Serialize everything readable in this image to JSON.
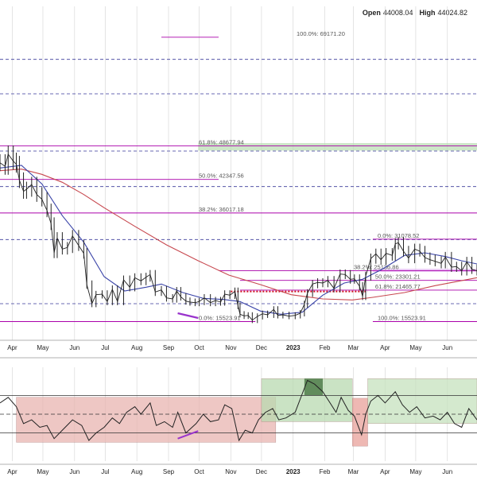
{
  "ohlc": {
    "open_label": "Open",
    "open_value": "44008.04",
    "high_label": "High",
    "high_value": "44024.82"
  },
  "chart_data": {
    "type": "line",
    "price_panel": {
      "ylim": [
        12000,
        75000
      ],
      "fib_levels": [
        {
          "label": "100.0%: 69171.20",
          "value": 69171.2,
          "color": "#aa00aa",
          "x_from": "2022-08-25",
          "x_to": "2022-10-20"
        },
        {
          "label": "61.8%: 48677.94",
          "value": 48677.94,
          "color": "#aa00aa",
          "x_from": "2022-03-20",
          "x_to": "2023-06-30"
        },
        {
          "label": "50.0%: 42347.56",
          "value": 42347.56,
          "color": "#aa00aa",
          "x_from": "2022-03-20",
          "x_to": "2022-10-20"
        },
        {
          "label": "38.2%: 36017.18",
          "value": 36017.18,
          "color": "#aa00aa",
          "x_from": "2022-03-20",
          "x_to": "2023-06-30"
        },
        {
          "label": "0.0%: 15523.91",
          "value": 15523.91,
          "color": "#aa00aa",
          "x_from": "2022-03-20",
          "x_to": "2022-11-25"
        },
        {
          "label": "0.0%: 31078.52",
          "value": 31078.52,
          "color": "#aa00aa",
          "x_from": "2023-03-20",
          "x_to": "2023-06-30"
        },
        {
          "label": "38.2%: 25136.86",
          "value": 25136.86,
          "color": "#aa00aa",
          "x_from": "2022-10-20",
          "x_to": "2023-06-30"
        },
        {
          "label": "50.0%: 23301.21",
          "value": 23301.21,
          "color": "#aa00aa",
          "x_from": "2022-11-10",
          "x_to": "2023-06-30"
        },
        {
          "label": "61.8%: 21465.77",
          "value": 21465.77,
          "color": "#aa00aa",
          "x_from": "2022-11-10",
          "x_to": "2023-06-30"
        },
        {
          "label": "100.0%: 15523.91",
          "value": 15523.91,
          "color": "#aa00aa",
          "x_from": "2023-03-20",
          "x_to": "2023-06-30"
        }
      ],
      "dashed_levels": [
        65000,
        58500,
        47700,
        41000,
        31000,
        18900
      ],
      "highlight_zone": {
        "x_from": "2022-09-30",
        "x_to": "2023-06-30",
        "y_from": 47800,
        "y_to": 49200,
        "color": "#b8dcb0"
      },
      "purple_band": {
        "x_from": "2023-03-20",
        "x_to": "2023-06-30",
        "y_from": 24900,
        "y_to": 25500
      },
      "red_dotted_resistance": {
        "x_from": "2022-11-01",
        "x_to": "2023-03-15",
        "value": 21200
      },
      "price_close": [
        [
          "2022-03-20",
          45500
        ],
        [
          "2022-03-25",
          44800
        ],
        [
          "2022-03-28",
          47100
        ],
        [
          "2022-04-02",
          45800
        ],
        [
          "2022-04-05",
          45200
        ],
        [
          "2022-04-08",
          42200
        ],
        [
          "2022-04-12",
          40100
        ],
        [
          "2022-04-15",
          40500
        ],
        [
          "2022-04-20",
          41400
        ],
        [
          "2022-04-25",
          39500
        ],
        [
          "2022-04-30",
          38600
        ],
        [
          "2022-05-05",
          36500
        ],
        [
          "2022-05-09",
          34000
        ],
        [
          "2022-05-12",
          28500
        ],
        [
          "2022-05-15",
          31300
        ],
        [
          "2022-05-20",
          29200
        ],
        [
          "2022-05-25",
          29500
        ],
        [
          "2022-05-30",
          31700
        ],
        [
          "2022-06-05",
          29900
        ],
        [
          "2022-06-10",
          28400
        ],
        [
          "2022-06-13",
          22500
        ],
        [
          "2022-06-18",
          18900
        ],
        [
          "2022-06-22",
          20600
        ],
        [
          "2022-06-28",
          20700
        ],
        [
          "2022-07-03",
          19300
        ],
        [
          "2022-07-08",
          21600
        ],
        [
          "2022-07-13",
          19300
        ],
        [
          "2022-07-19",
          23400
        ],
        [
          "2022-07-25",
          22000
        ],
        [
          "2022-07-30",
          23800
        ],
        [
          "2022-08-05",
          23200
        ],
        [
          "2022-08-10",
          23900
        ],
        [
          "2022-08-14",
          24400
        ],
        [
          "2022-08-19",
          21100
        ],
        [
          "2022-08-25",
          21500
        ],
        [
          "2022-08-30",
          20000
        ],
        [
          "2022-09-05",
          19800
        ],
        [
          "2022-09-09",
          21300
        ],
        [
          "2022-09-13",
          20200
        ],
        [
          "2022-09-18",
          19400
        ],
        [
          "2022-09-22",
          19200
        ],
        [
          "2022-09-27",
          19100
        ],
        [
          "2022-10-01",
          19300
        ],
        [
          "2022-10-06",
          20000
        ],
        [
          "2022-10-12",
          19100
        ],
        [
          "2022-10-17",
          19500
        ],
        [
          "2022-10-22",
          19200
        ],
        [
          "2022-10-26",
          20700
        ],
        [
          "2022-10-31",
          20500
        ],
        [
          "2022-11-05",
          21200
        ],
        [
          "2022-11-08",
          18500
        ],
        [
          "2022-11-10",
          16900
        ],
        [
          "2022-11-14",
          16600
        ],
        [
          "2022-11-18",
          16700
        ],
        [
          "2022-11-22",
          15800
        ],
        [
          "2022-11-27",
          16500
        ],
        [
          "2022-12-02",
          17000
        ],
        [
          "2022-12-07",
          16800
        ],
        [
          "2022-12-13",
          17800
        ],
        [
          "2022-12-17",
          16700
        ],
        [
          "2022-12-22",
          16800
        ],
        [
          "2022-12-28",
          16550
        ],
        [
          "2023-01-03",
          16700
        ],
        [
          "2023-01-08",
          17100
        ],
        [
          "2023-01-12",
          18800
        ],
        [
          "2023-01-15",
          20900
        ],
        [
          "2023-01-20",
          22600
        ],
        [
          "2023-01-25",
          22900
        ],
        [
          "2023-01-30",
          22800
        ],
        [
          "2023-02-04",
          23300
        ],
        [
          "2023-02-10",
          21800
        ],
        [
          "2023-02-16",
          24500
        ],
        [
          "2023-02-21",
          24400
        ],
        [
          "2023-02-26",
          23500
        ],
        [
          "2023-03-02",
          23600
        ],
        [
          "2023-03-07",
          22200
        ],
        [
          "2023-03-10",
          20300
        ],
        [
          "2023-03-13",
          24100
        ],
        [
          "2023-03-18",
          27400
        ],
        [
          "2023-03-23",
          28300
        ],
        [
          "2023-03-28",
          27200
        ],
        [
          "2023-04-02",
          28400
        ],
        [
          "2023-04-08",
          28000
        ],
        [
          "2023-04-11",
          30200
        ],
        [
          "2023-04-14",
          30400
        ],
        [
          "2023-04-19",
          28800
        ],
        [
          "2023-04-24",
          27500
        ],
        [
          "2023-04-30",
          29200
        ],
        [
          "2023-05-05",
          28800
        ],
        [
          "2023-05-10",
          27600
        ],
        [
          "2023-05-15",
          27200
        ],
        [
          "2023-05-20",
          26900
        ],
        [
          "2023-05-26",
          26500
        ],
        [
          "2023-05-30",
          27700
        ],
        [
          "2023-06-05",
          25800
        ],
        [
          "2023-06-10",
          25900
        ],
        [
          "2023-06-15",
          25100
        ],
        [
          "2023-06-20",
          26800
        ],
        [
          "2023-06-25",
          25400
        ],
        [
          "2023-06-30",
          25100
        ]
      ],
      "ma_fast": [
        [
          "2022-03-20",
          44500
        ],
        [
          "2022-04-10",
          45000
        ],
        [
          "2022-04-30",
          41500
        ],
        [
          "2022-05-20",
          35500
        ],
        [
          "2022-06-10",
          30500
        ],
        [
          "2022-06-30",
          24000
        ],
        [
          "2022-07-20",
          21300
        ],
        [
          "2022-08-10",
          22000
        ],
        [
          "2022-08-25",
          22600
        ],
        [
          "2022-09-15",
          21000
        ],
        [
          "2022-10-05",
          19900
        ],
        [
          "2022-10-25",
          19700
        ],
        [
          "2022-11-10",
          19300
        ],
        [
          "2022-11-30",
          17500
        ],
        [
          "2022-12-20",
          16900
        ],
        [
          "2023-01-10",
          17300
        ],
        [
          "2023-01-30",
          20500
        ],
        [
          "2023-02-20",
          22800
        ],
        [
          "2023-03-10",
          23500
        ],
        [
          "2023-03-30",
          25500
        ],
        [
          "2023-04-20",
          28000
        ],
        [
          "2023-05-10",
          28500
        ],
        [
          "2023-05-30",
          27800
        ],
        [
          "2023-06-15",
          27000
        ],
        [
          "2023-06-30",
          26400
        ]
      ],
      "ma_slow": [
        [
          "2022-03-20",
          44000
        ],
        [
          "2022-04-10",
          44300
        ],
        [
          "2022-04-30",
          43300
        ],
        [
          "2022-05-20",
          41800
        ],
        [
          "2022-06-10",
          39500
        ],
        [
          "2022-06-30",
          37000
        ],
        [
          "2022-07-30",
          33500
        ],
        [
          "2022-08-30",
          30000
        ],
        [
          "2022-09-30",
          27000
        ],
        [
          "2022-10-30",
          24300
        ],
        [
          "2022-11-30",
          22500
        ],
        [
          "2022-12-30",
          20600
        ],
        [
          "2023-01-30",
          19800
        ],
        [
          "2023-02-28",
          19600
        ],
        [
          "2023-03-20",
          20100
        ],
        [
          "2023-04-20",
          21000
        ],
        [
          "2023-05-20",
          22300
        ],
        [
          "2023-06-30",
          23800
        ]
      ]
    },
    "indicator_panel": {
      "ylim": [
        0,
        100
      ],
      "levels": [
        70,
        50,
        30
      ],
      "zones": [
        {
          "x_from": "2022-04-05",
          "x_to": "2022-12-15",
          "y_from": 20,
          "y_to": 68,
          "color": "#e8b4b0"
        },
        {
          "x_from": "2022-12-01",
          "x_to": "2023-02-28",
          "y_from": 42,
          "y_to": 88,
          "color": "#b8d9b0"
        },
        {
          "x_from": "2023-02-28",
          "x_to": "2023-03-15",
          "y_from": 16,
          "y_to": 67,
          "color": "#e8a09a"
        },
        {
          "x_from": "2023-03-15",
          "x_to": "2023-06-30",
          "y_from": 40,
          "y_to": 88,
          "color": "#c5e1bd"
        }
      ],
      "green_peak_zone": {
        "x_from": "2023-01-12",
        "x_to": "2023-01-30",
        "y_from": 70,
        "y_to": 88,
        "color": "#4f7d4a"
      },
      "rsi": [
        [
          "2022-03-20",
          62
        ],
        [
          "2022-03-28",
          68
        ],
        [
          "2022-04-05",
          58
        ],
        [
          "2022-04-12",
          40
        ],
        [
          "2022-04-20",
          44
        ],
        [
          "2022-04-28",
          36
        ],
        [
          "2022-05-05",
          38
        ],
        [
          "2022-05-12",
          24
        ],
        [
          "2022-05-20",
          33
        ],
        [
          "2022-05-30",
          44
        ],
        [
          "2022-06-08",
          38
        ],
        [
          "2022-06-15",
          22
        ],
        [
          "2022-06-22",
          30
        ],
        [
          "2022-06-30",
          36
        ],
        [
          "2022-07-08",
          46
        ],
        [
          "2022-07-15",
          40
        ],
        [
          "2022-07-22",
          52
        ],
        [
          "2022-07-30",
          58
        ],
        [
          "2022-08-05",
          50
        ],
        [
          "2022-08-14",
          62
        ],
        [
          "2022-08-20",
          38
        ],
        [
          "2022-08-28",
          42
        ],
        [
          "2022-09-05",
          36
        ],
        [
          "2022-09-10",
          52
        ],
        [
          "2022-09-18",
          30
        ],
        [
          "2022-09-28",
          40
        ],
        [
          "2022-10-05",
          50
        ],
        [
          "2022-10-12",
          42
        ],
        [
          "2022-10-20",
          44
        ],
        [
          "2022-10-26",
          60
        ],
        [
          "2022-11-02",
          56
        ],
        [
          "2022-11-09",
          22
        ],
        [
          "2022-11-15",
          33
        ],
        [
          "2022-11-22",
          30
        ],
        [
          "2022-11-28",
          44
        ],
        [
          "2022-12-05",
          52
        ],
        [
          "2022-12-12",
          56
        ],
        [
          "2022-12-18",
          44
        ],
        [
          "2022-12-25",
          46
        ],
        [
          "2023-01-03",
          52
        ],
        [
          "2023-01-10",
          72
        ],
        [
          "2023-01-15",
          86
        ],
        [
          "2023-01-22",
          82
        ],
        [
          "2023-01-30",
          74
        ],
        [
          "2023-02-05",
          64
        ],
        [
          "2023-02-12",
          52
        ],
        [
          "2023-02-17",
          68
        ],
        [
          "2023-02-24",
          54
        ],
        [
          "2023-03-02",
          48
        ],
        [
          "2023-03-09",
          28
        ],
        [
          "2023-03-13",
          50
        ],
        [
          "2023-03-18",
          64
        ],
        [
          "2023-03-25",
          70
        ],
        [
          "2023-04-01",
          62
        ],
        [
          "2023-04-11",
          74
        ],
        [
          "2023-04-18",
          60
        ],
        [
          "2023-04-25",
          52
        ],
        [
          "2023-05-02",
          58
        ],
        [
          "2023-05-10",
          46
        ],
        [
          "2023-05-18",
          48
        ],
        [
          "2023-05-25",
          44
        ],
        [
          "2023-06-01",
          52
        ],
        [
          "2023-06-08",
          40
        ],
        [
          "2023-06-15",
          36
        ],
        [
          "2023-06-22",
          56
        ],
        [
          "2023-06-30",
          44
        ]
      ]
    },
    "x_ticks": [
      {
        "label": "Apr",
        "date": "2022-04-01",
        "bold": false
      },
      {
        "label": "May",
        "date": "2022-05-01",
        "bold": false
      },
      {
        "label": "Jun",
        "date": "2022-06-01",
        "bold": false
      },
      {
        "label": "Jul",
        "date": "2022-07-01",
        "bold": false
      },
      {
        "label": "Aug",
        "date": "2022-08-01",
        "bold": false
      },
      {
        "label": "Sep",
        "date": "2022-09-01",
        "bold": false
      },
      {
        "label": "Oct",
        "date": "2022-10-01",
        "bold": false
      },
      {
        "label": "Nov",
        "date": "2022-11-01",
        "bold": false
      },
      {
        "label": "Dec",
        "date": "2022-12-01",
        "bold": false
      },
      {
        "label": "2023",
        "date": "2023-01-01",
        "bold": true
      },
      {
        "label": "Feb",
        "date": "2023-02-01",
        "bold": false
      },
      {
        "label": "Mar",
        "date": "2023-03-01",
        "bold": false
      },
      {
        "label": "Apr",
        "date": "2023-04-01",
        "bold": false
      },
      {
        "label": "May",
        "date": "2023-05-01",
        "bold": false
      },
      {
        "label": "Jun",
        "date": "2023-06-01",
        "bold": false
      }
    ],
    "grid": true,
    "colors": {
      "price": "#222222",
      "ma_fast": "#3a44a8",
      "ma_slow": "#c7484f",
      "fib": "#aa00aa",
      "dashed": "#3a3a9a",
      "red_dotted": "#d01020",
      "rsi": "#222222",
      "grid": "#d8d8d8"
    }
  }
}
